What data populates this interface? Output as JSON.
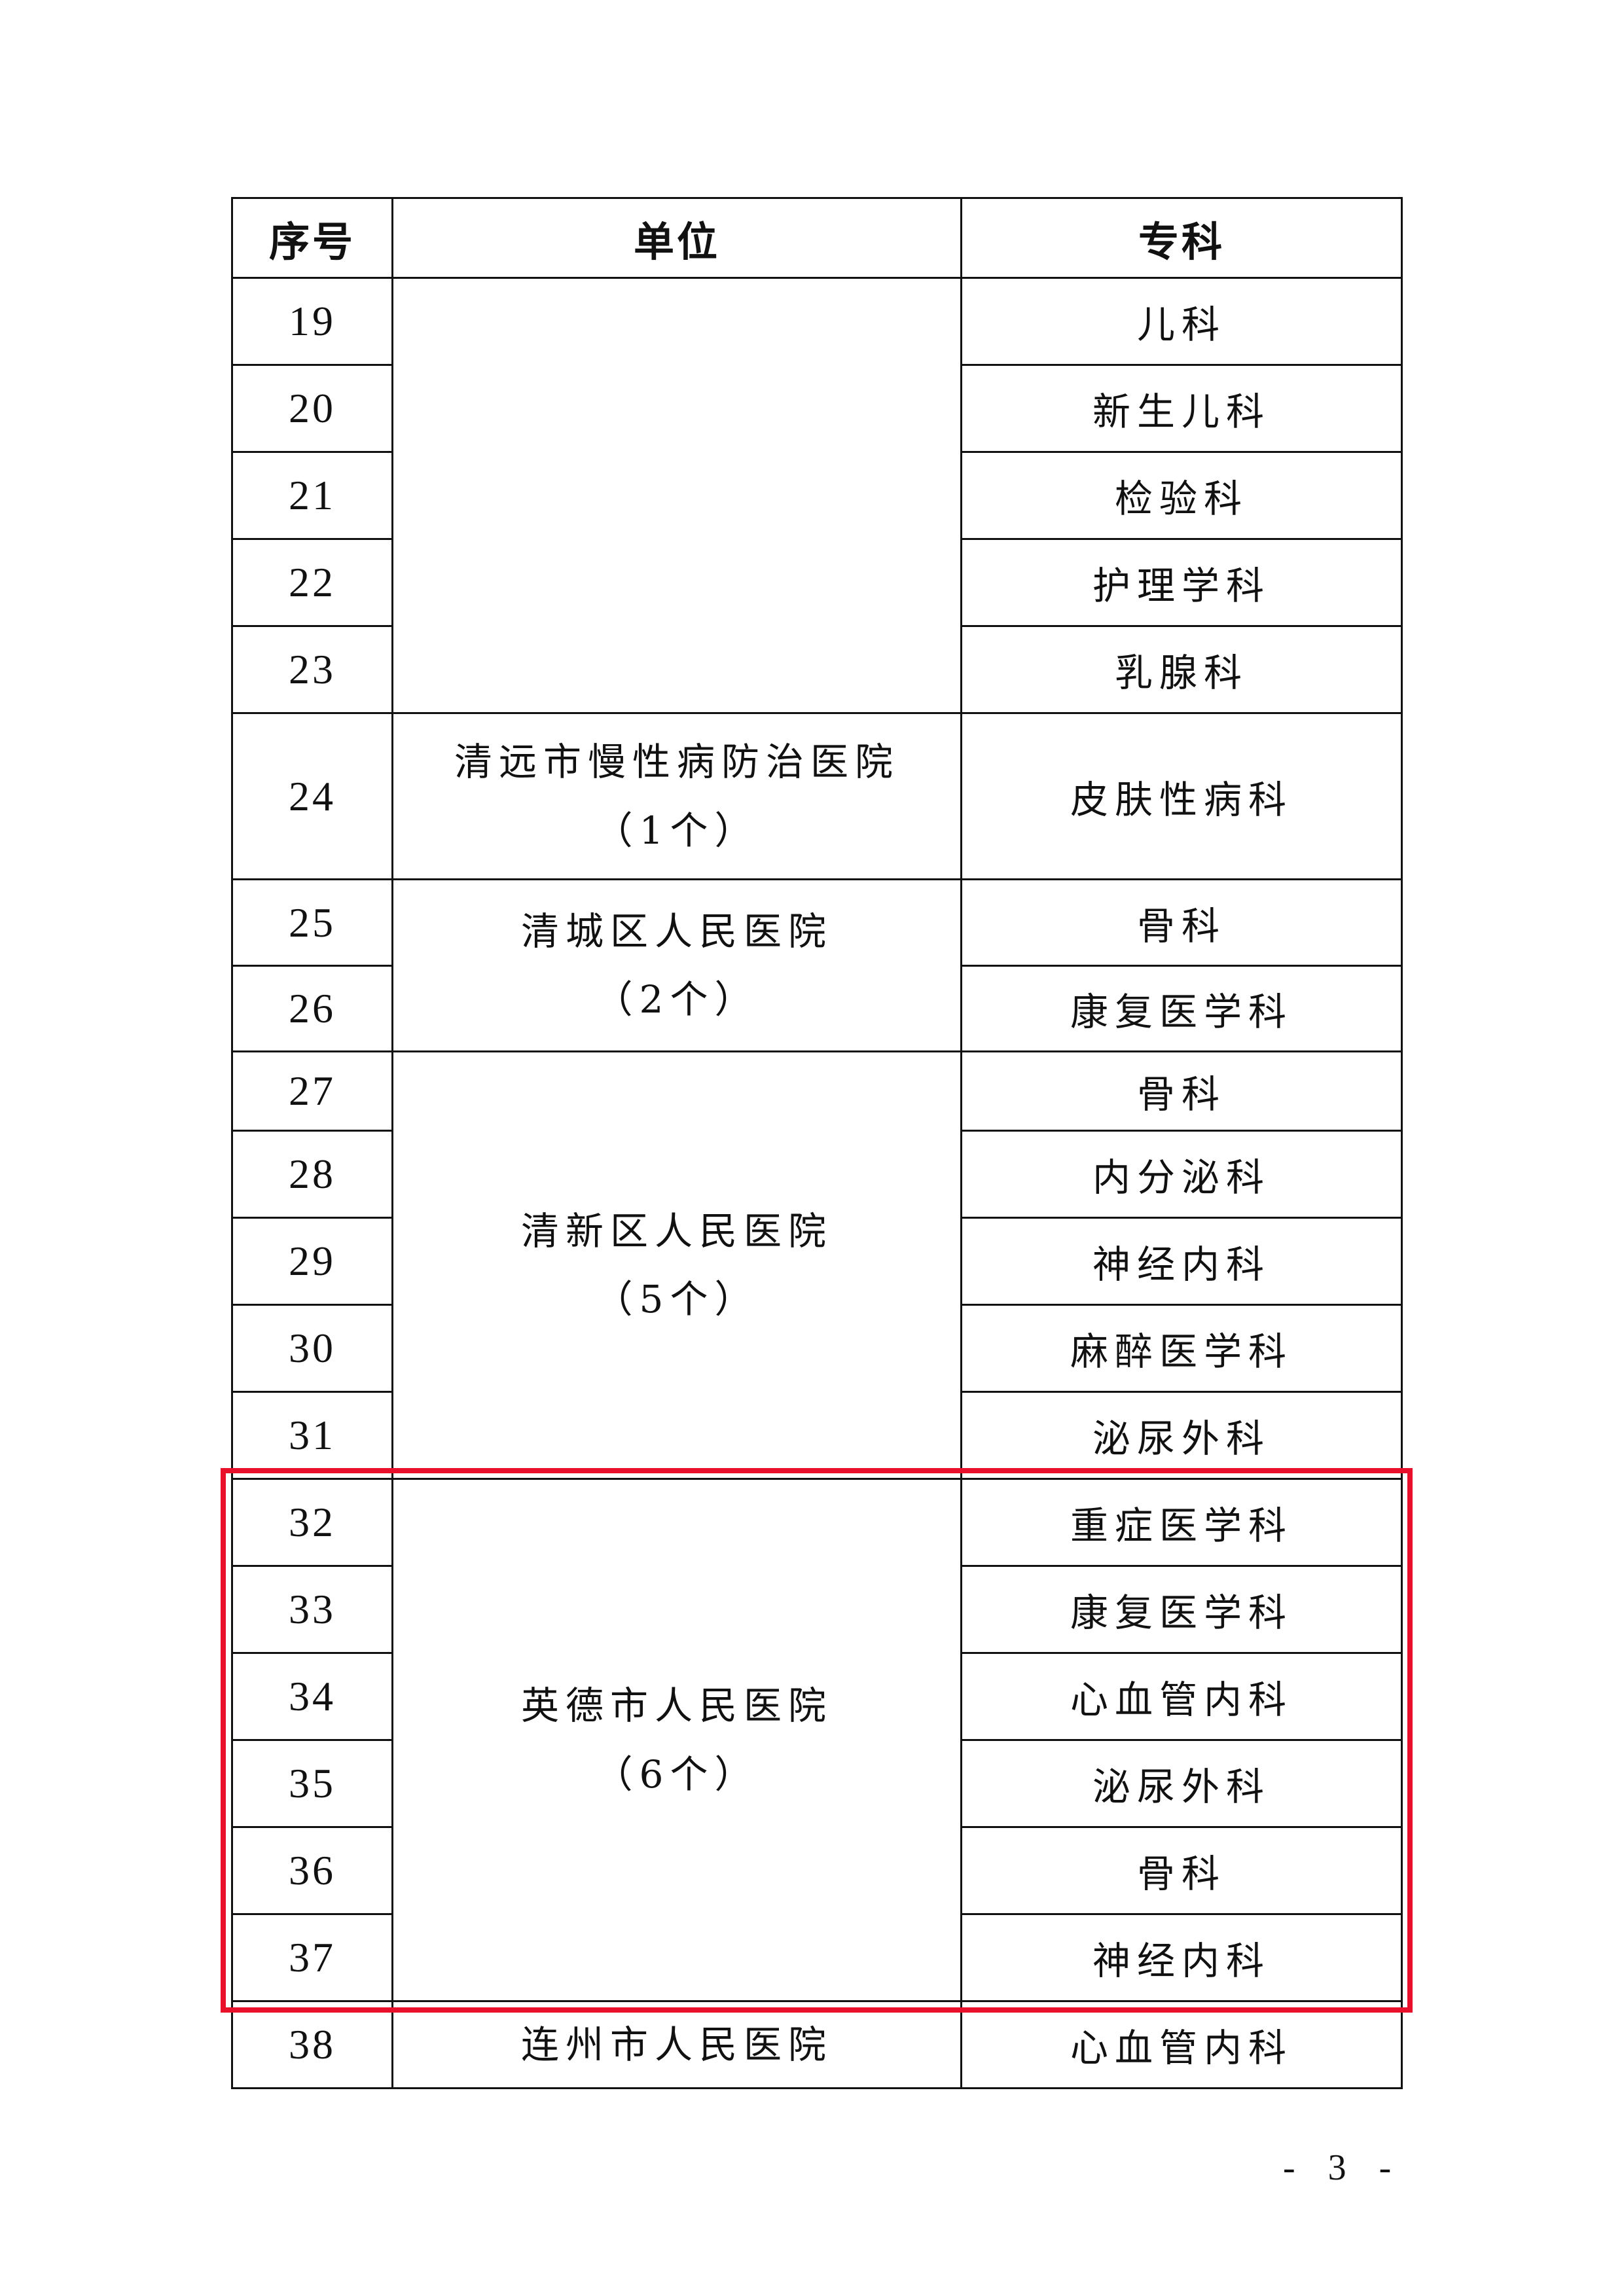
{
  "headers": {
    "index": "序号",
    "unit": "单位",
    "specialty": "专科"
  },
  "rows": [
    {
      "no": "19",
      "specialty": "儿科"
    },
    {
      "no": "20",
      "specialty": "新生儿科"
    },
    {
      "no": "21",
      "specialty": "检验科"
    },
    {
      "no": "22",
      "specialty": "护理学科"
    },
    {
      "no": "23",
      "specialty": "乳腺科"
    },
    {
      "no": "24",
      "specialty": "皮肤性病科"
    },
    {
      "no": "25",
      "specialty": "骨科"
    },
    {
      "no": "26",
      "specialty": "康复医学科"
    },
    {
      "no": "27",
      "specialty": "骨科"
    },
    {
      "no": "28",
      "specialty": "内分泌科"
    },
    {
      "no": "29",
      "specialty": "神经内科"
    },
    {
      "no": "30",
      "specialty": "麻醉医学科"
    },
    {
      "no": "31",
      "specialty": "泌尿外科"
    },
    {
      "no": "32",
      "specialty": "重症医学科"
    },
    {
      "no": "33",
      "specialty": "康复医学科"
    },
    {
      "no": "34",
      "specialty": "心血管内科"
    },
    {
      "no": "35",
      "specialty": "泌尿外科"
    },
    {
      "no": "36",
      "specialty": "骨科"
    },
    {
      "no": "37",
      "specialty": "神经内科"
    },
    {
      "no": "38",
      "specialty": "心血管内科"
    }
  ],
  "units": [
    {
      "name": "",
      "count": "",
      "start": 0,
      "span": 5
    },
    {
      "name": "清远市慢性病防治医院",
      "count": "（1个）",
      "start": 5,
      "span": 1
    },
    {
      "name": "清城区人民医院",
      "count": "（2个）",
      "start": 6,
      "span": 2
    },
    {
      "name": "清新区人民医院",
      "count": "（5个）",
      "start": 8,
      "span": 5
    },
    {
      "name": "英德市人民医院",
      "count": "（6个）",
      "start": 13,
      "span": 6
    },
    {
      "name": "连州市人民医院",
      "count": "",
      "start": 19,
      "span": 1
    }
  ],
  "highlight_color": "#e8102a",
  "page_number": "- 3 -"
}
